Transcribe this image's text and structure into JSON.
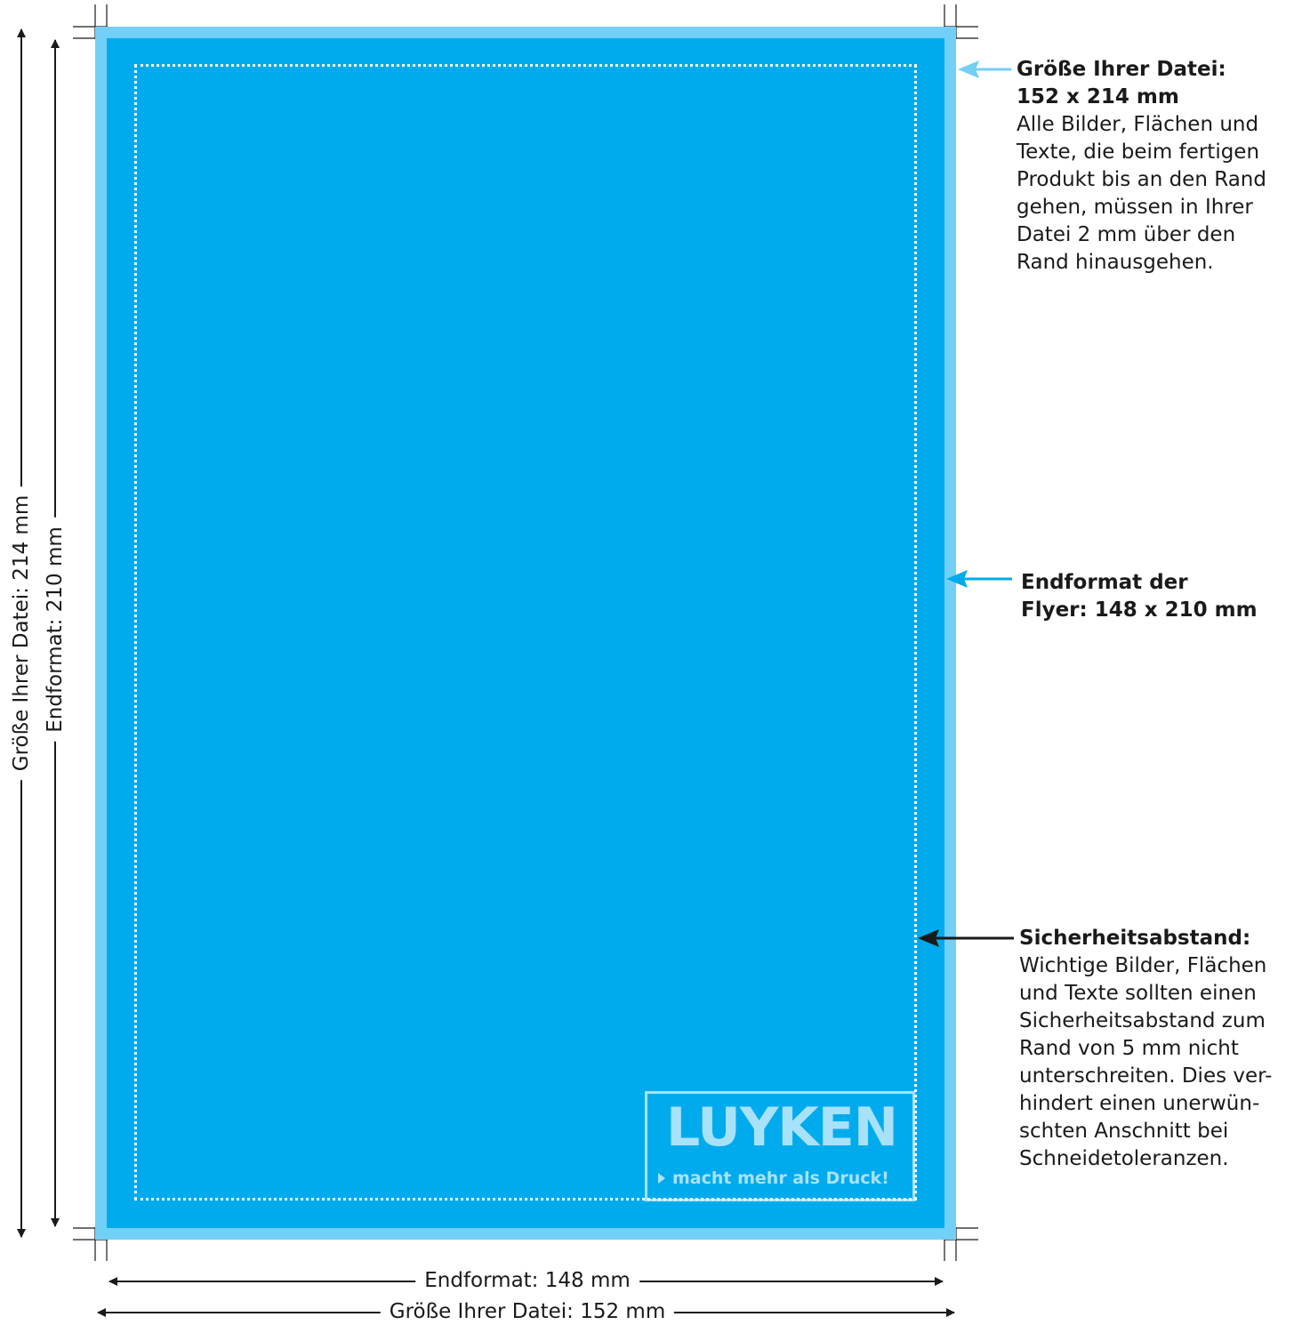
{
  "colors": {
    "bleed": "#72cff5",
    "trim": "#00abed",
    "safe_line": "#ffffff",
    "logo_text": "#a8e2fa",
    "arrow_light": "#72cff5",
    "arrow_blue": "#00abed",
    "arrow_dark": "#1a1a1a",
    "text": "#1a1a1a"
  },
  "logo": {
    "wordmark": "LUYKEN",
    "tagline": "macht mehr als Druck!",
    "icon": "triangle-right-icon"
  },
  "dimensions": {
    "width_trim": "Endformat: 148 mm",
    "width_file": "Größe Ihrer Datei: 152 mm",
    "height_trim": "Endformat: 210 mm",
    "height_file": "Größe Ihrer Datei: 214 mm"
  },
  "callouts": {
    "file_size": {
      "title": "Größe Ihrer Datei:",
      "subtitle": "152 x 214 mm",
      "body": "Alle Bilder, Flächen und\nTexte, die beim fertigen\nProdukt bis an den Rand\ngehen, müssen in Ihrer\nDatei 2 mm über den\nRand hinausgehen."
    },
    "end_format": {
      "title": "Endformat der",
      "subtitle": "Flyer: 148 x 210 mm"
    },
    "safety": {
      "title": "Sicherheitsabstand:",
      "body": "Wichtige Bilder, Flächen\nund Texte sollten einen\nSicherheitsabstand zum\nRand von 5 mm nicht\nunterschreiten. Dies ver-\nhindert einen unerwün-\nschten Anschnitt bei\nSchneidetoleranzen."
    }
  }
}
